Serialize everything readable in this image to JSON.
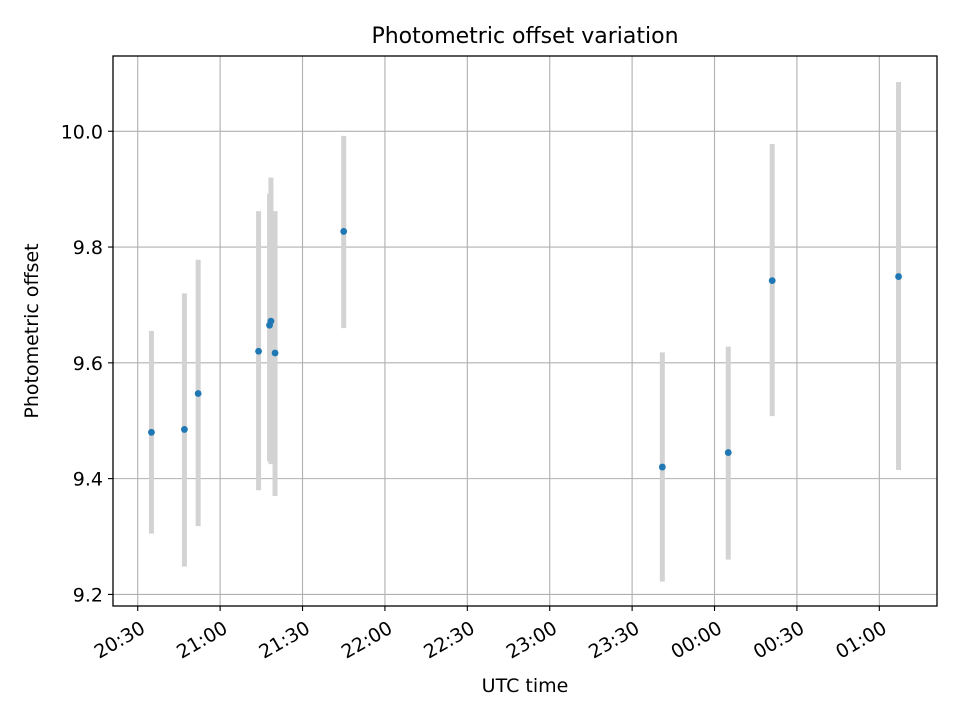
{
  "chart_data": {
    "type": "scatter",
    "title": "Photometric offset variation",
    "xlabel": "UTC time",
    "ylabel": "Photometric offset",
    "x_tick_labels": [
      "20:30",
      "21:00",
      "21:30",
      "22:00",
      "22:30",
      "23:00",
      "23:30",
      "00:00",
      "00:30",
      "01:00"
    ],
    "y_tick_labels": [
      "9.2",
      "9.4",
      "9.6",
      "9.8",
      "10.0"
    ],
    "y_ticks": [
      9.2,
      9.4,
      9.6,
      9.8,
      10.0
    ],
    "xlim": [
      "20:21",
      "01:21"
    ],
    "ylim": [
      9.18,
      10.13
    ],
    "grid": true,
    "colors": {
      "marker": "#1f77b4",
      "errorbar": "#d3d3d3"
    },
    "points": [
      {
        "x": "20:35",
        "y": 9.48,
        "yerr_low": 9.305,
        "yerr_high": 9.655
      },
      {
        "x": "20:47",
        "y": 9.485,
        "yerr_low": 9.248,
        "yerr_high": 9.72
      },
      {
        "x": "20:52",
        "y": 9.547,
        "yerr_low": 9.318,
        "yerr_high": 9.778
      },
      {
        "x": "21:14",
        "y": 9.62,
        "yerr_low": 9.38,
        "yerr_high": 9.862
      },
      {
        "x": "21:18",
        "y": 9.665,
        "yerr_low": 9.43,
        "yerr_high": 9.892
      },
      {
        "x": "21:18.5",
        "y": 9.672,
        "yerr_low": 9.425,
        "yerr_high": 9.92
      },
      {
        "x": "21:20",
        "y": 9.617,
        "yerr_low": 9.37,
        "yerr_high": 9.862
      },
      {
        "x": "21:45",
        "y": 9.827,
        "yerr_low": 9.66,
        "yerr_high": 9.992
      },
      {
        "x": "23:41",
        "y": 9.42,
        "yerr_low": 9.222,
        "yerr_high": 9.618
      },
      {
        "x": "00:05",
        "y": 9.445,
        "yerr_low": 9.26,
        "yerr_high": 9.628
      },
      {
        "x": "00:21",
        "y": 9.742,
        "yerr_low": 9.508,
        "yerr_high": 9.978
      },
      {
        "x": "01:07",
        "y": 9.749,
        "yerr_low": 9.415,
        "yerr_high": 10.085
      }
    ]
  }
}
